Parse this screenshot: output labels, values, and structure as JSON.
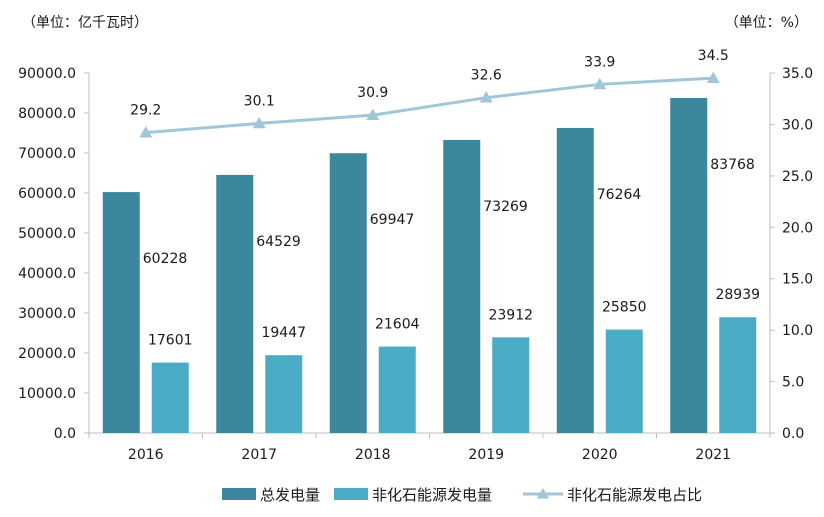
{
  "chart_data": {
    "type": "bar",
    "categories": [
      "2016",
      "2017",
      "2018",
      "2019",
      "2020",
      "2021"
    ],
    "series": [
      {
        "name": "总发电量",
        "kind": "bar",
        "axis": "left",
        "color": "#3b889e",
        "values": [
          60228,
          64529,
          69947,
          73269,
          76264,
          83768
        ]
      },
      {
        "name": "非化石能源发电量",
        "kind": "bar",
        "axis": "left",
        "color": "#4bacc6",
        "values": [
          17601,
          19447,
          21604,
          23912,
          25850,
          28939
        ]
      },
      {
        "name": "非化石能源发电占比",
        "kind": "line",
        "axis": "right",
        "color": "#9fc6d9",
        "marker": "triangle",
        "values": [
          29.2,
          30.1,
          30.9,
          32.6,
          33.9,
          34.5
        ]
      }
    ],
    "y_left": {
      "unit_label": "（单位：亿千瓦时）",
      "min": 0,
      "max": 90000,
      "step": 10000,
      "ticks": [
        "0.0",
        "10000.0",
        "20000.0",
        "30000.0",
        "40000.0",
        "50000.0",
        "60000.0",
        "70000.0",
        "80000.0",
        "90000.0"
      ]
    },
    "y_right": {
      "unit_label": "（单位：%）",
      "min": 0,
      "max": 35,
      "step": 5,
      "ticks": [
        "0.0",
        "5.0",
        "10.0",
        "15.0",
        "20.0",
        "25.0",
        "30.0",
        "35.0"
      ]
    },
    "grid": false,
    "legend_position": "bottom"
  }
}
